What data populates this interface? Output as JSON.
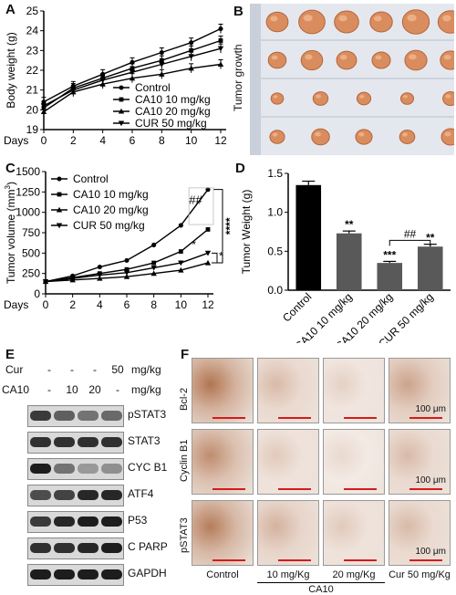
{
  "panels": {
    "A": "A",
    "B": "B",
    "C": "C",
    "D": "D",
    "E": "E",
    "F": "F"
  },
  "panel_b": {
    "ylabel": "Tumor growth",
    "tumor_counts": [
      6,
      6,
      5,
      5
    ]
  },
  "chart_data": [
    {
      "id": "A",
      "type": "line",
      "title": "",
      "xlabel": "Days",
      "ylabel": "Body weight (g)",
      "x": [
        0,
        2,
        4,
        6,
        8,
        10,
        12
      ],
      "xticks": [
        "0",
        "2",
        "4",
        "6",
        "8",
        "10",
        "12"
      ],
      "ylim": [
        19,
        25
      ],
      "yticks": [
        "19",
        "20",
        "21",
        "22",
        "23",
        "24",
        "25"
      ],
      "legend_position": "bottom-right",
      "series": [
        {
          "name": "Control",
          "marker": "circle",
          "values": [
            20.4,
            21.2,
            21.8,
            22.4,
            22.9,
            23.4,
            24.1
          ]
        },
        {
          "name": "CA10 10 mg/kg",
          "marker": "square",
          "values": [
            20.1,
            21.1,
            21.6,
            22.1,
            22.5,
            23.0,
            23.5
          ]
        },
        {
          "name": "CA10 20 mg/kg",
          "marker": "triangle-up",
          "values": [
            19.9,
            20.9,
            21.3,
            21.6,
            21.8,
            22.1,
            22.3
          ]
        },
        {
          "name": "CUR 50 mg/kg",
          "marker": "triangle-down",
          "values": [
            20.2,
            21.0,
            21.5,
            21.9,
            22.3,
            22.7,
            23.1
          ]
        }
      ]
    },
    {
      "id": "C",
      "type": "line",
      "title": "",
      "xlabel": "Days",
      "ylabel": "Tumor volume  (mm",
      "ylabel_sup": "3",
      "ylabel_end": ")",
      "x": [
        0,
        2,
        4,
        6,
        8,
        10,
        12
      ],
      "xticks": [
        "0",
        "2",
        "4",
        "6",
        "8",
        "10",
        "12"
      ],
      "ylim": [
        0,
        1500
      ],
      "yticks": [
        "0",
        "250",
        "500",
        "750",
        "1000",
        "1250",
        "1500"
      ],
      "legend_position": "top-left",
      "series": [
        {
          "name": "Control",
          "marker": "circle",
          "values": [
            150,
            220,
            330,
            410,
            600,
            840,
            1280
          ]
        },
        {
          "name": "CA10 10 mg/kg",
          "marker": "square",
          "values": [
            150,
            200,
            250,
            300,
            380,
            520,
            790
          ]
        },
        {
          "name": "CA10 20 mg/kg",
          "marker": "triangle-up",
          "values": [
            150,
            170,
            190,
            210,
            250,
            290,
            380
          ]
        },
        {
          "name": "CUR 50 mg/kg",
          "marker": "triangle-down",
          "values": [
            150,
            190,
            230,
            260,
            320,
            380,
            500
          ]
        }
      ],
      "annotations": {
        "hash": "##",
        "stars4": "****",
        "star1": "*",
        "star2": "*"
      }
    },
    {
      "id": "D",
      "type": "bar",
      "title": "",
      "ylabel": "Tumor Weight (g)",
      "categories": [
        "Control",
        "CA10 10 mg/kg",
        "CA10 20 mg/kg",
        "CUR 50 mg/kg"
      ],
      "values": [
        1.35,
        0.73,
        0.35,
        0.56
      ],
      "errors": [
        0.05,
        0.03,
        0.02,
        0.03
      ],
      "colors": [
        "#000000",
        "#595959",
        "#595959",
        "#595959"
      ],
      "ylim": [
        0.0,
        1.5
      ],
      "yticks": [
        "0.0",
        "0.5",
        "1.0",
        "1.5"
      ],
      "significance": [
        "",
        "**",
        "***",
        "**"
      ],
      "bracket_label": "##"
    }
  ],
  "panel_e": {
    "cur_label": "Cur",
    "ca10_label": "CA10",
    "cur_values": [
      "-",
      "-",
      "-",
      "50"
    ],
    "ca10_values": [
      "-",
      "10",
      "20",
      "-"
    ],
    "unit": "mg/kg",
    "bands": [
      {
        "name": "pSTAT3",
        "intensity": [
          0.75,
          0.55,
          0.45,
          0.5
        ]
      },
      {
        "name": "STAT3",
        "intensity": [
          0.8,
          0.8,
          0.8,
          0.8
        ]
      },
      {
        "name": "CYC B1",
        "intensity": [
          0.9,
          0.45,
          0.25,
          0.3
        ]
      },
      {
        "name": "ATF4",
        "intensity": [
          0.65,
          0.7,
          0.85,
          0.85
        ]
      },
      {
        "name": "P53",
        "intensity": [
          0.75,
          0.85,
          0.9,
          0.9
        ]
      },
      {
        "name": "C PARP",
        "intensity": [
          0.8,
          0.8,
          0.85,
          0.9
        ]
      },
      {
        "name": "GAPDH",
        "intensity": [
          0.9,
          0.9,
          0.9,
          0.9
        ]
      }
    ]
  },
  "panel_f": {
    "rows": [
      "Bcl-2",
      "Cyclin B1",
      "pSTAT3"
    ],
    "columns": [
      "Control",
      "10 mg/Kg",
      "20 mg/Kg",
      "Cur 50 mg/Kg"
    ],
    "group_label": "CA10",
    "scale_label": "100 μm",
    "stain_level": [
      [
        0.9,
        0.45,
        0.3,
        0.6
      ],
      [
        0.75,
        0.35,
        0.25,
        0.45
      ],
      [
        0.85,
        0.5,
        0.35,
        0.45
      ]
    ],
    "stain_color": "#a9663e",
    "bg_color": "#ece3db",
    "scalebar_color": "#d41b1b"
  }
}
